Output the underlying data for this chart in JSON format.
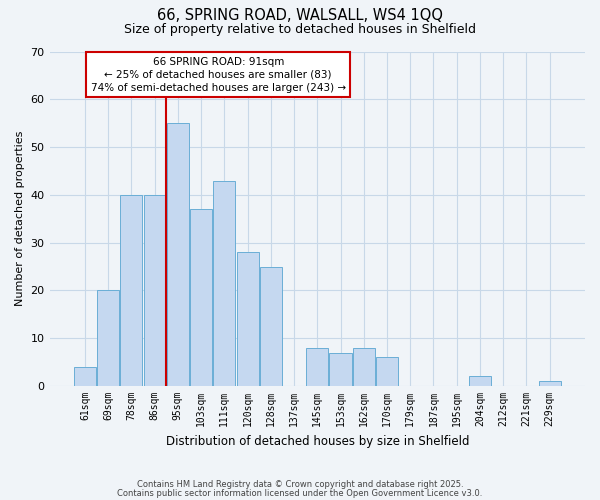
{
  "title": "66, SPRING ROAD, WALSALL, WS4 1QQ",
  "subtitle": "Size of property relative to detached houses in Shelfield",
  "xlabel": "Distribution of detached houses by size in Shelfield",
  "ylabel": "Number of detached properties",
  "categories": [
    "61sqm",
    "69sqm",
    "78sqm",
    "86sqm",
    "95sqm",
    "103sqm",
    "111sqm",
    "120sqm",
    "128sqm",
    "137sqm",
    "145sqm",
    "153sqm",
    "162sqm",
    "170sqm",
    "179sqm",
    "187sqm",
    "195sqm",
    "204sqm",
    "212sqm",
    "221sqm",
    "229sqm"
  ],
  "values": [
    4,
    20,
    40,
    40,
    55,
    37,
    43,
    28,
    25,
    0,
    8,
    7,
    8,
    6,
    0,
    0,
    0,
    2,
    0,
    0,
    1
  ],
  "bar_color": "#c5d8f0",
  "bar_edge_color": "#6aaed6",
  "ylim": [
    0,
    70
  ],
  "yticks": [
    0,
    10,
    20,
    30,
    40,
    50,
    60,
    70
  ],
  "annotation_title": "66 SPRING ROAD: 91sqm",
  "annotation_line1": "← 25% of detached houses are smaller (83)",
  "annotation_line2": "74% of semi-detached houses are larger (243) →",
  "footer1": "Contains HM Land Registry data © Crown copyright and database right 2025.",
  "footer2": "Contains public sector information licensed under the Open Government Licence v3.0.",
  "bg_color": "#f0f4f8",
  "annotation_box_color": "#ffffff",
  "annotation_box_edge": "#cc0000",
  "vline_color": "#cc0000",
  "grid_color": "#c8d8e8",
  "vline_x": 3.5
}
